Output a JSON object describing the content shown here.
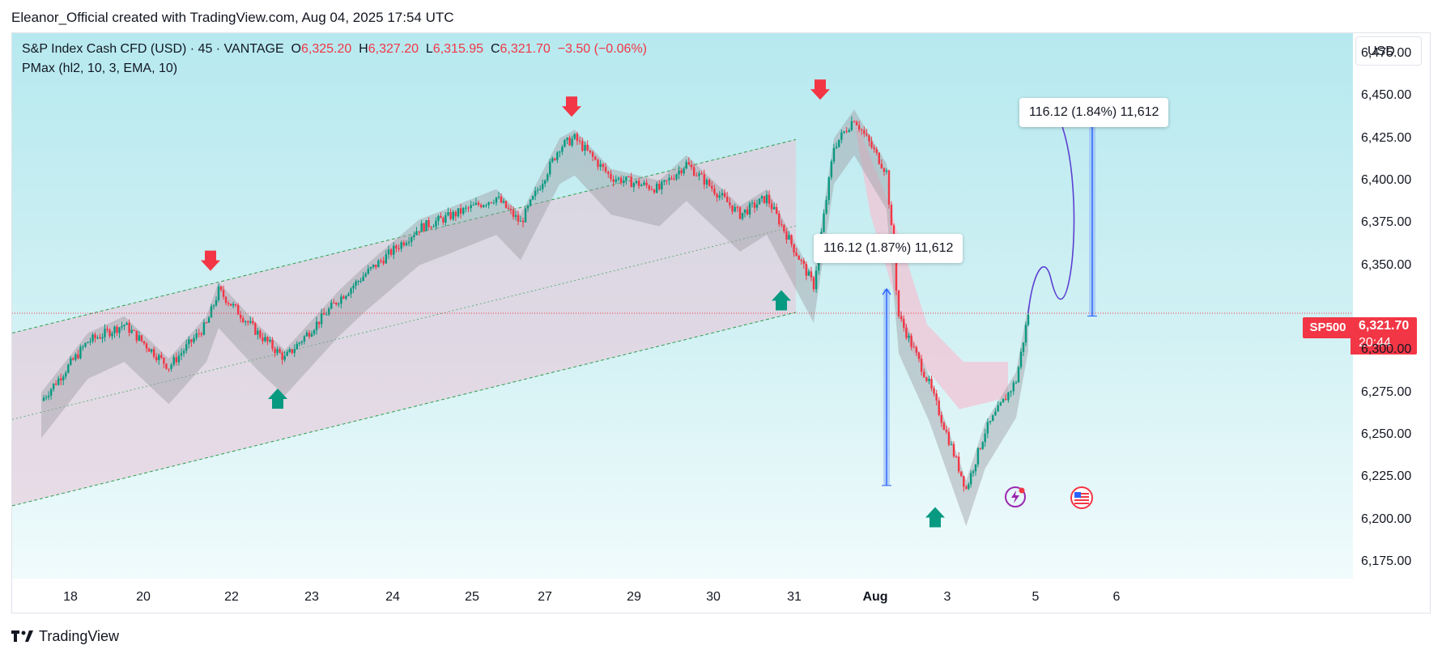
{
  "header": {
    "text": "Eleanor_Official created with TradingView.com, Aug 04, 2025 17:54 UTC"
  },
  "legend": {
    "line1_prefix": "S&P Index Cash CFD (USD) · 45 · VANTAGE",
    "o_label": "O",
    "o_value": "6,325.20",
    "h_label": "H",
    "h_value": "6,327.20",
    "l_label": "L",
    "l_value": "6,315.95",
    "c_label": "C",
    "c_value": "6,321.70",
    "change": "−3.50 (−0.06%)",
    "line2": "PMax (hl2, 10, 3, EMA, 10)"
  },
  "currency": "USD",
  "symbol_tag": "SP500",
  "last_price": {
    "value": "6,321.70",
    "countdown": "20:44"
  },
  "footer": {
    "brand": "TradingView"
  },
  "annotations": {
    "measure_past": "116.12 (1.87%) 11,612",
    "measure_projection": "116.12 (1.84%) 11,612"
  },
  "colors": {
    "up": "#089981",
    "down": "#f23645",
    "channel_fill": "#e8c8d8",
    "pmax_gray": "#9e9ea5",
    "projection": "#5b3fd1",
    "measure": "#2962ff"
  },
  "chart_data": {
    "type": "candlestick",
    "title": "S&P Index Cash CFD (USD) · 45 · VANTAGE",
    "ylim": [
      6165,
      6487
    ],
    "y_ticks": [
      "6,475.00",
      "6,450.00",
      "6,425.00",
      "6,400.00",
      "6,375.00",
      "6,350.00",
      "6,300.00",
      "6,275.00",
      "6,250.00",
      "6,225.00",
      "6,200.00",
      "6,175.00"
    ],
    "x_ticks": [
      "18",
      "20",
      "22",
      "23",
      "24",
      "25",
      "27",
      "29",
      "30",
      "31",
      "Aug",
      "3",
      "5",
      "6"
    ],
    "price_path_approx": [
      {
        "x": "17 Jul",
        "y": 6270
      },
      {
        "x": "18 Jul",
        "y": 6305
      },
      {
        "x": "19 Jul",
        "y": 6315
      },
      {
        "x": "20 Jul",
        "y": 6290
      },
      {
        "x": "21 Jul",
        "y": 6315
      },
      {
        "x": "21 Jul",
        "y": 6335
      },
      {
        "x": "22 Jul",
        "y": 6310
      },
      {
        "x": "22 Jul",
        "y": 6295
      },
      {
        "x": "23 Jul",
        "y": 6330
      },
      {
        "x": "23 Jul",
        "y": 6345
      },
      {
        "x": "24 Jul",
        "y": 6372
      },
      {
        "x": "24 Jul",
        "y": 6378
      },
      {
        "x": "25 Jul",
        "y": 6390
      },
      {
        "x": "25 Jul",
        "y": 6375
      },
      {
        "x": "27 Jul",
        "y": 6420
      },
      {
        "x": "27 Jul",
        "y": 6425
      },
      {
        "x": "28 Jul",
        "y": 6402
      },
      {
        "x": "29 Jul",
        "y": 6395
      },
      {
        "x": "29 Jul",
        "y": 6410
      },
      {
        "x": "30 Jul",
        "y": 6380
      },
      {
        "x": "30 Jul",
        "y": 6390
      },
      {
        "x": "31 Jul",
        "y": 6338
      },
      {
        "x": "31 Jul",
        "y": 6420
      },
      {
        "x": "31 Jul",
        "y": 6437
      },
      {
        "x": "1 Aug",
        "y": 6405
      },
      {
        "x": "1 Aug",
        "y": 6320
      },
      {
        "x": "2 Aug",
        "y": 6280
      },
      {
        "x": "3 Aug",
        "y": 6218
      },
      {
        "x": "3 Aug",
        "y": 6252
      },
      {
        "x": "4 Aug",
        "y": 6282
      },
      {
        "x": "4 Aug",
        "y": 6321.7
      }
    ],
    "last_value": 6321.7,
    "signals_sell": [
      "21 Jul",
      "27 Jul",
      "31 Jul"
    ],
    "signals_buy": [
      "22 Jul",
      "31 Jul",
      "3 Aug"
    ],
    "projection_target": 6436,
    "measure_past_range": [
      6220,
      6336
    ],
    "measure_projection_range": [
      6320,
      6436
    ]
  }
}
